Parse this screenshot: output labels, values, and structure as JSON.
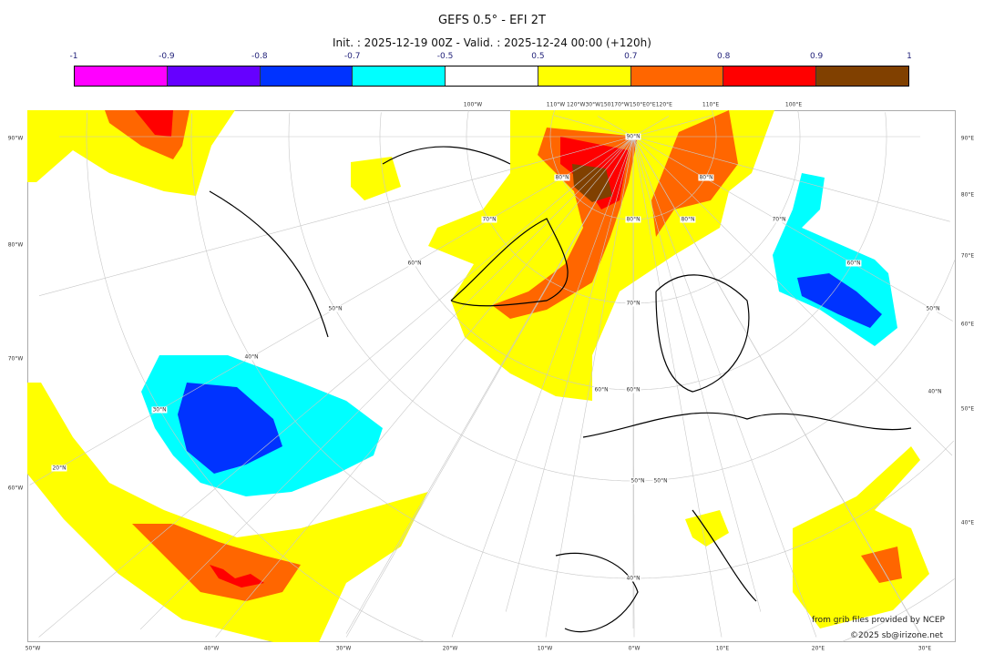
{
  "title": "GEFS 0.5° - EFI 2T",
  "subtitle": "Init. : 2025-12-19 00Z - Valid. : 2025-12-24 00:00 (+120h)",
  "colorbar": {
    "ticks": [
      "-1",
      "-0.9",
      "-0.8",
      "-0.7",
      "-0.5",
      "0.5",
      "0.7",
      "0.8",
      "0.9",
      "1"
    ],
    "colors": [
      "#ff00ff",
      "#6600ff",
      "#0033ff",
      "#00ffff",
      "#ffffff",
      "#ffff00",
      "#ff6600",
      "#ff0000",
      "#804000"
    ]
  },
  "axes": {
    "bottom": [
      "50°W",
      "40°W",
      "30°W",
      "20°W",
      "10°W",
      "0°W",
      "10°E",
      "20°E",
      "30°E"
    ],
    "top": [
      "100°W",
      "110°W",
      "120°W30°W150170°W150°E0°E120°E",
      "110°E",
      "100°E"
    ],
    "left": [
      "90°W",
      "80°W",
      "70°W",
      "60°W"
    ],
    "right": [
      "90°E",
      "80°E",
      "70°E",
      "60°E",
      "50°E",
      "40°E"
    ],
    "lat": [
      "90°N",
      "80°N",
      "70°N",
      "60°N",
      "50°N",
      "40°N",
      "80°N",
      "70°N",
      "60°N",
      "50°N",
      "40°N",
      "30°N",
      "20°N",
      "80°N",
      "70°N",
      "60°N",
      "50°N",
      "40°N",
      "80°N",
      "60°N",
      "50°N"
    ]
  },
  "credits": {
    "source": "from grib files provided by NCEP",
    "copyright": "©2025 sb@irizone.net"
  }
}
